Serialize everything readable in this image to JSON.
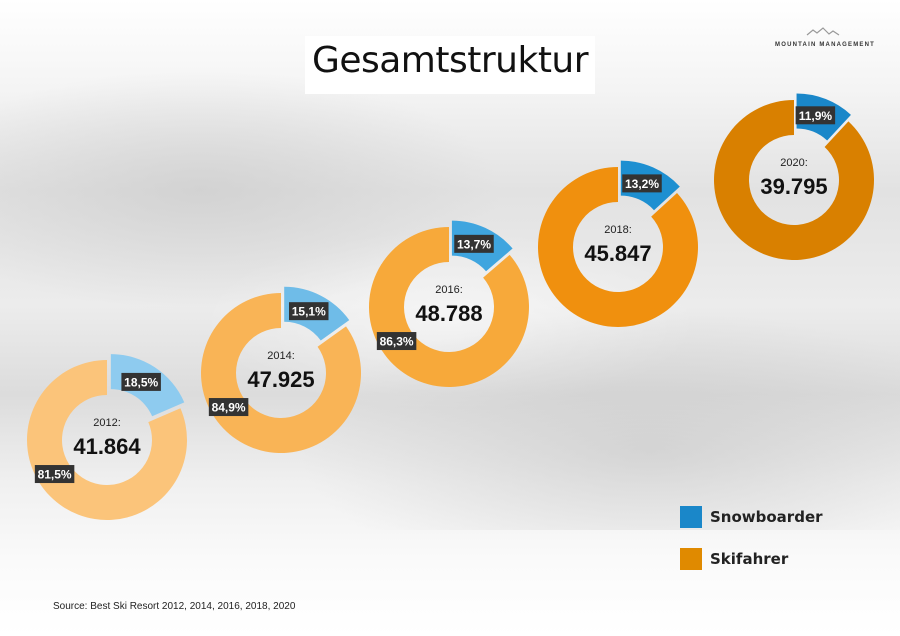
{
  "title": "Gesamtstruktur",
  "logo": {
    "text": "MOUNTAIN MANAGEMENT"
  },
  "source": "Source: Best Ski Resort 2012, 2014, 2016, 2018, 2020",
  "chart_data": {
    "type": "donut",
    "title": "Gesamtstruktur",
    "legend_position": "bottom-right",
    "legend": [
      {
        "name": "Snowboarder",
        "color": "#1a87c9"
      },
      {
        "name": "Skifahrer",
        "color": "#e08a00"
      }
    ],
    "charts": [
      {
        "year_label": "2012:",
        "total": "41.864",
        "snowboarder": 18.5,
        "skifahrer": 81.5,
        "snowboarder_label": "18,5%",
        "skifahrer_label": "81,5%",
        "colors": {
          "snowboarder": "#8ecbef",
          "skifahrer": "#fbc47a"
        }
      },
      {
        "year_label": "2014:",
        "total": "47.925",
        "snowboarder": 15.1,
        "skifahrer": 84.9,
        "snowboarder_label": "15,1%",
        "skifahrer_label": "84,9%",
        "colors": {
          "snowboarder": "#6fbce8",
          "skifahrer": "#f9b456"
        }
      },
      {
        "year_label": "2016:",
        "total": "48.788",
        "snowboarder": 13.7,
        "skifahrer": 86.3,
        "snowboarder_label": "13,7%",
        "skifahrer_label": "86,3%",
        "colors": {
          "snowboarder": "#3fa5df",
          "skifahrer": "#f7a93a"
        }
      },
      {
        "year_label": "2018:",
        "total": "45.847",
        "snowboarder": 13.2,
        "skifahrer": 86.8,
        "snowboarder_label": "13,2%",
        "skifahrer_label": "",
        "colors": {
          "snowboarder": "#1d8fd1",
          "skifahrer": "#f0900e"
        }
      },
      {
        "year_label": "2020:",
        "total": "39.795",
        "snowboarder": 11.9,
        "skifahrer": 88.1,
        "snowboarder_label": "11,9%",
        "skifahrer_label": "",
        "colors": {
          "snowboarder": "#1a87c9",
          "skifahrer": "#d98000"
        }
      }
    ]
  }
}
